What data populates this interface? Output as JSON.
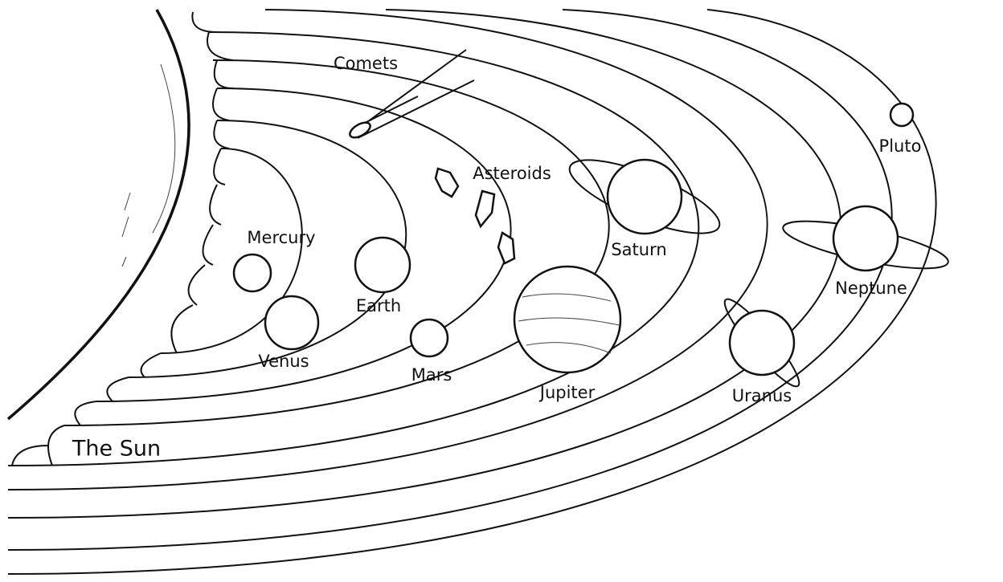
{
  "diagram": {
    "sun": "The Sun",
    "comets": "Comets",
    "asteroids": "Asteroids",
    "planets": [
      "Mercury",
      "Venus",
      "Earth",
      "Mars",
      "Jupiter",
      "Saturn",
      "Uranus",
      "Neptune",
      "Pluto"
    ]
  }
}
